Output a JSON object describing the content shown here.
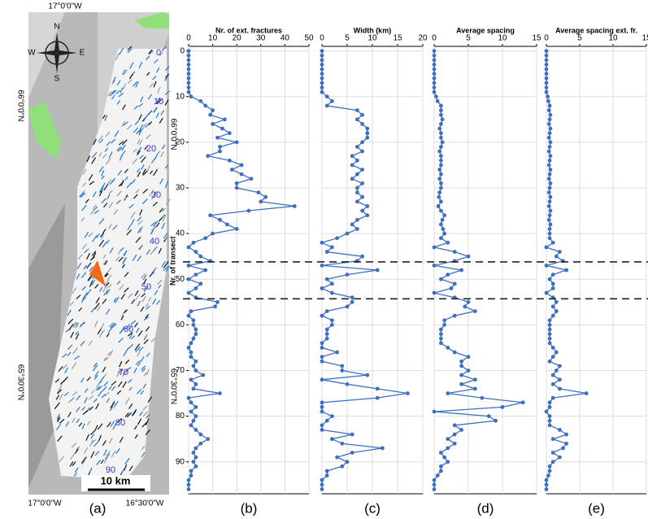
{
  "map": {
    "panel": "(a)",
    "lon_top": "17°0'0\"W",
    "lon_bottom": [
      "17°0'0\"W",
      "16°30'0\"W"
    ],
    "lat_left": [
      "66°0'0\"N",
      "65°30'0\"N"
    ],
    "lat_right": [
      "66°0'0\"N",
      "65°30'0\"N"
    ],
    "compass": [
      "N",
      "E",
      "S",
      "W"
    ],
    "scale": "10 km",
    "transect_labels": [
      0,
      10,
      20,
      30,
      40,
      50,
      60,
      70,
      80,
      90
    ]
  },
  "chart_data": [
    {
      "type": "line",
      "title": "Nr. of ext. fractures",
      "panel": "(b)",
      "color": "#3d6fc0",
      "ylabel": "Nr. of transect",
      "y": [
        0,
        1,
        2,
        3,
        4,
        5,
        6,
        7,
        8,
        9,
        10,
        11,
        12,
        13,
        14,
        15,
        16,
        17,
        18,
        19,
        20,
        21,
        22,
        23,
        24,
        25,
        26,
        27,
        28,
        29,
        30,
        31,
        32,
        33,
        34,
        35,
        36,
        37,
        38,
        39,
        40,
        41,
        42,
        43,
        44,
        45,
        46,
        47,
        48,
        49,
        50,
        51,
        52,
        53,
        54,
        55,
        56,
        57,
        58,
        59,
        60,
        61,
        62,
        63,
        64,
        65,
        66,
        67,
        68,
        69,
        70,
        71,
        72,
        73,
        74,
        75,
        76,
        77,
        78,
        79,
        80,
        81,
        82,
        83,
        84,
        85,
        86,
        87,
        88,
        89,
        90,
        91,
        92,
        93,
        94,
        95,
        96
      ],
      "ylim": [
        -1,
        97
      ],
      "yticks": [
        0,
        10,
        20,
        30,
        40,
        50,
        60,
        70,
        80,
        90
      ],
      "hlines": [
        46.2,
        54.3
      ],
      "xlim": [
        0,
        50
      ],
      "xticks": [
        0,
        10,
        20,
        30,
        40,
        50
      ],
      "grid": true,
      "values": [
        0,
        0,
        0,
        0,
        0,
        0,
        0,
        0,
        0,
        0,
        1,
        5,
        7,
        10,
        9,
        15,
        10,
        14,
        17,
        12,
        20,
        13,
        13,
        8,
        17,
        22,
        18,
        22,
        26,
        20,
        20,
        29,
        32,
        30,
        44,
        25,
        9,
        13,
        16,
        20,
        10,
        7,
        2,
        0,
        3,
        5,
        9,
        0,
        7,
        3,
        0,
        5,
        3,
        0,
        3,
        12,
        11,
        1,
        0,
        2,
        2,
        3,
        3,
        2,
        1,
        0,
        1,
        1,
        3,
        2,
        3,
        6,
        1,
        3,
        2,
        13,
        0,
        1,
        3,
        1,
        3,
        2,
        1,
        3,
        5,
        8,
        5,
        3,
        2,
        3,
        2,
        3,
        1,
        1,
        0,
        0,
        0
      ]
    },
    {
      "type": "line",
      "title": "Width (km)",
      "panel": "(c)",
      "color": "#3d6fc0",
      "xlim": [
        0,
        20
      ],
      "xticks": [
        0,
        5,
        10,
        15,
        20
      ],
      "grid": true,
      "values": [
        0,
        0,
        0,
        0,
        0,
        0,
        0,
        0,
        0,
        0,
        1,
        2,
        1,
        7,
        8,
        7,
        8,
        9,
        9,
        9,
        8,
        7,
        8,
        6,
        7,
        6,
        8,
        7,
        6,
        8,
        7,
        7,
        8,
        7,
        9,
        8,
        9,
        7,
        6,
        7,
        5,
        3,
        0,
        2,
        1,
        8,
        7,
        0,
        11,
        5,
        1,
        2,
        0,
        2,
        6,
        6,
        5,
        1,
        0,
        2,
        2,
        1,
        1,
        1,
        0,
        0,
        3,
        0,
        0,
        4,
        4,
        9,
        0,
        5,
        11,
        17,
        11,
        0,
        0,
        0,
        2,
        1,
        0,
        0,
        6,
        2,
        4,
        12,
        6,
        3,
        5,
        4,
        1,
        1,
        0,
        0,
        0
      ]
    },
    {
      "type": "line",
      "title": "Average spacing",
      "panel": "(d)",
      "color": "#3d6fc0",
      "xlim": [
        0,
        15
      ],
      "xticks": [
        0,
        5,
        10,
        15
      ],
      "grid": true,
      "values": [
        0,
        0,
        0,
        0,
        0,
        0,
        0,
        0,
        0,
        0,
        0.3,
        0.5,
        1,
        1,
        1,
        1.2,
        1,
        0.8,
        1,
        1,
        1.2,
        1,
        0.8,
        1,
        1,
        1,
        0.8,
        1,
        0.8,
        1,
        1,
        0.8,
        0.7,
        1,
        0.6,
        1,
        1.5,
        1.2,
        1,
        1.3,
        1.5,
        1,
        2,
        0,
        3,
        5,
        3,
        0,
        4,
        2,
        1,
        3,
        2.5,
        0,
        3,
        5,
        4.5,
        6,
        3,
        1.5,
        1.5,
        1,
        1,
        1,
        1,
        2,
        3,
        5,
        4,
        4,
        5,
        4,
        6,
        4,
        6,
        2,
        7,
        13,
        10,
        0,
        8,
        9,
        3,
        4,
        3,
        2,
        3,
        2,
        1,
        1.5,
        2,
        1,
        1,
        0.5,
        0,
        0,
        0
      ]
    },
    {
      "type": "line",
      "title": "Average spacing ext. fr.",
      "panel": "(e)",
      "color": "#3d6fc0",
      "xlim": [
        0,
        15
      ],
      "xticks": [
        0,
        5,
        10,
        15
      ],
      "grid": true,
      "values": [
        0,
        0,
        0,
        0,
        0,
        0,
        0,
        0,
        0,
        0,
        0.2,
        0.3,
        0.5,
        0.4,
        0.6,
        0.5,
        0.4,
        0.6,
        0.5,
        0.4,
        0.6,
        0.5,
        0.4,
        0.6,
        0.5,
        0.4,
        0.6,
        0.5,
        0.4,
        0.6,
        0.5,
        0.4,
        0.6,
        0.5,
        0.4,
        0.6,
        0.5,
        0.4,
        0.6,
        0.5,
        0.5,
        0.5,
        1,
        0,
        2,
        1.5,
        2.5,
        0,
        3,
        1,
        0.5,
        1,
        1,
        0,
        1,
        1.5,
        1,
        1.5,
        1,
        0.5,
        0.5,
        0.5,
        0.5,
        0.5,
        0.5,
        1,
        1.5,
        1,
        0.5,
        2,
        1.5,
        1,
        2,
        1,
        2,
        6,
        1,
        0.5,
        0.5,
        0,
        0.5,
        0.5,
        0.5,
        2,
        3,
        1,
        3,
        2.5,
        1,
        2,
        1,
        0.5,
        0.5,
        0.3,
        0,
        0,
        0
      ]
    }
  ]
}
